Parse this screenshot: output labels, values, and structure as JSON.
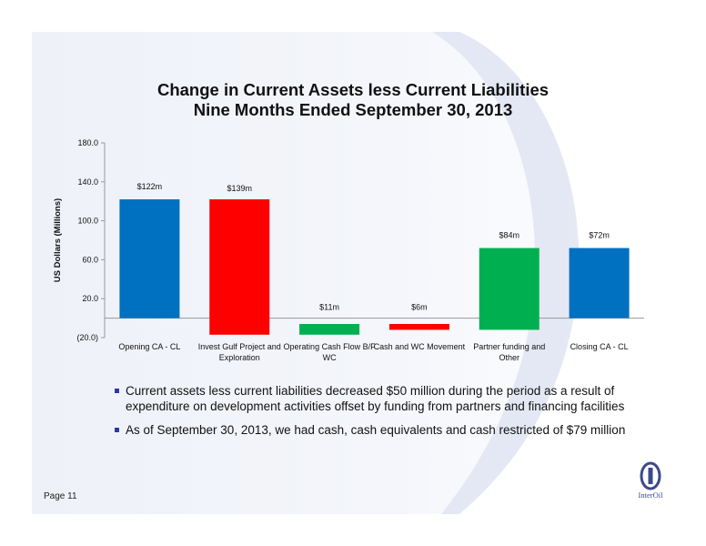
{
  "title": {
    "line1": "Change in Current Assets less Current Liabilities",
    "line2": "Nine Months Ended September 30, 2013"
  },
  "chart_data": {
    "type": "bar",
    "subtype": "waterfall",
    "title": "Change in Current Assets less Current Liabilities Nine Months Ended September 30, 2013",
    "ylabel": "US Dollars (Millions)",
    "xlabel": "",
    "ylim": [
      -20,
      180
    ],
    "yticks": [
      -20,
      20,
      60,
      100,
      140,
      180
    ],
    "ytick_labels": [
      "(20.0)",
      "20.0",
      "60.0",
      "100.0",
      "140.0",
      "180.0"
    ],
    "grid": false,
    "categories": [
      "Opening CA - CL",
      "Invest Gulf Project and Exploration",
      "Operating Cash Flow B/F WC",
      "Cash and WC Movement",
      "Partner funding and Other",
      "Closing CA - CL"
    ],
    "category_label_lines": [
      [
        "Opening CA - CL"
      ],
      [
        "Invest Gulf Project and",
        "Exploration"
      ],
      [
        "Operating Cash Flow B/F",
        "WC"
      ],
      [
        "Cash and WC Movement"
      ],
      [
        "Partner funding and",
        "Other"
      ],
      [
        "Closing CA - CL"
      ]
    ],
    "bars": [
      {
        "category": "Opening CA - CL",
        "start": 0,
        "end": 122,
        "color": "#0070c0",
        "label": "$122m"
      },
      {
        "category": "Invest Gulf Project and Exploration",
        "start": 122,
        "end": -17,
        "color": "#ff0000",
        "label": "$139m"
      },
      {
        "category": "Operating Cash Flow B/F WC",
        "start": -6,
        "end": -17,
        "color": "#00b050",
        "label": "$11m"
      },
      {
        "category": "Cash and WC Movement",
        "start": -6,
        "end": -12,
        "color": "#ff0000",
        "label": "$6m"
      },
      {
        "category": "Partner funding and Other",
        "start": -12,
        "end": 72,
        "color": "#00b050",
        "label": "$84m"
      },
      {
        "category": "Closing CA - CL",
        "start": 0,
        "end": 72,
        "color": "#0070c0",
        "label": "$72m"
      }
    ]
  },
  "bullets": [
    "Current assets less current liabilities decreased $50 million during the period as a result of expenditure on development activities offset by funding from partners and financing facilities",
    "As of September 30, 2013, we had cash, cash equivalents and cash restricted of $79 million"
  ],
  "footer": {
    "page": "Page 11",
    "logo_text": "InterOil"
  },
  "colors": {
    "blue": "#0070c0",
    "red": "#ff0000",
    "green": "#00b050",
    "bullet": "#2c3a9c"
  }
}
